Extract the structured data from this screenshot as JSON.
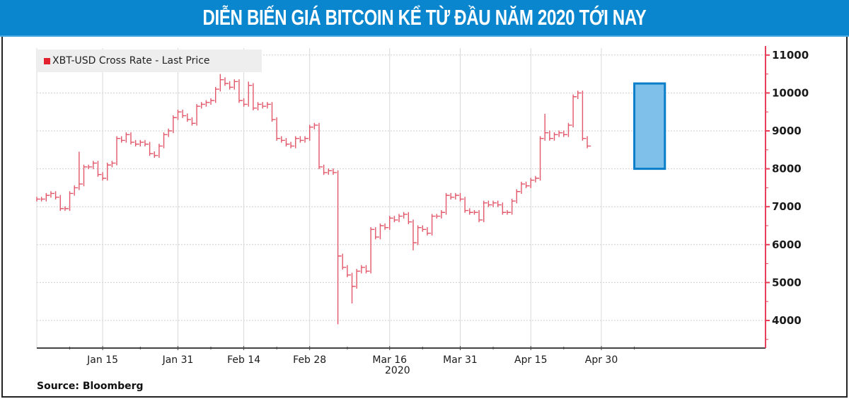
{
  "banner": {
    "title": "DIỄN BIẾN GIÁ BITCOIN KỂ TỪ ĐẦU NĂM 2020 TỚI NAY",
    "background": "#0a86cf"
  },
  "legend": {
    "label": "XBT-USD Cross Rate - Last Price",
    "color": "#e3202d"
  },
  "source": "Source: Bloomberg",
  "highlight": {
    "start_day": 127,
    "end_day": 133.5,
    "low": 8000,
    "high": 10250,
    "fill": "#7fc0ea",
    "stroke": "#0a7ec8"
  },
  "chart_data": {
    "type": "line",
    "title": "DIỄN BIẾN GIÁ BITCOIN KỂ TỪ ĐẦU NĂM 2020 TỚI NAY",
    "series_name": "XBT-USD Cross Rate - Last Price",
    "xlabel": "2020",
    "ylabel": "",
    "ylim": [
      3300,
      11000
    ],
    "y_ticks": [
      4000,
      5000,
      6000,
      7000,
      8000,
      9000,
      10000,
      11000
    ],
    "x_ticks": [
      {
        "label": "Jan 15",
        "day": 14
      },
      {
        "label": "Jan 31",
        "day": 30
      },
      {
        "label": "Feb 14",
        "day": 44
      },
      {
        "label": "Feb 28",
        "day": 58
      },
      {
        "label": "Mar 16",
        "day": 75
      },
      {
        "label": "Mar 31",
        "day": 90
      },
      {
        "label": "Apr 15",
        "day": 105
      },
      {
        "label": "Apr 30",
        "day": 120
      }
    ],
    "grid": true,
    "legend_position": "top-left",
    "y_axis_side": "right",
    "start_date": "Jan 1 2020",
    "close": [
      7200,
      7200,
      7300,
      7350,
      7250,
      6950,
      6950,
      7350,
      7500,
      7600,
      8050,
      8050,
      8150,
      7850,
      7750,
      8100,
      8150,
      8800,
      8750,
      8900,
      8700,
      8650,
      8700,
      8650,
      8400,
      8350,
      8600,
      8900,
      9000,
      9350,
      9500,
      9400,
      9300,
      9200,
      9650,
      9700,
      9750,
      9800,
      10100,
      10350,
      10250,
      10150,
      10300,
      9800,
      9700,
      10200,
      9600,
      9700,
      9650,
      9700,
      9300,
      8800,
      8750,
      8650,
      8600,
      8800,
      8750,
      8800,
      9100,
      9150,
      8050,
      7900,
      7950,
      7900,
      5700,
      5400,
      5200,
      4900,
      5300,
      5400,
      5300,
      6400,
      6200,
      6500,
      6450,
      6700,
      6650,
      6750,
      6800,
      6600,
      6050,
      6450,
      6400,
      6300,
      6750,
      6750,
      6850,
      7300,
      7250,
      7300,
      7200,
      6900,
      6850,
      6850,
      6650,
      7100,
      7050,
      7100,
      7050,
      6850,
      6850,
      7150,
      7400,
      7600,
      7550,
      7700,
      7750,
      8800,
      8950,
      8800,
      8900,
      8950,
      8900,
      9150,
      9900,
      10000,
      8800,
      8600
    ],
    "notable_extremes": [
      {
        "day": 9,
        "high": 8450
      },
      {
        "day": 39,
        "high": 10500
      },
      {
        "day": 45,
        "high": 10300
      },
      {
        "day": 64,
        "low": 3900
      },
      {
        "day": 67,
        "low": 4450
      },
      {
        "day": 80,
        "low": 5850
      },
      {
        "day": 108,
        "high": 9450
      }
    ]
  }
}
